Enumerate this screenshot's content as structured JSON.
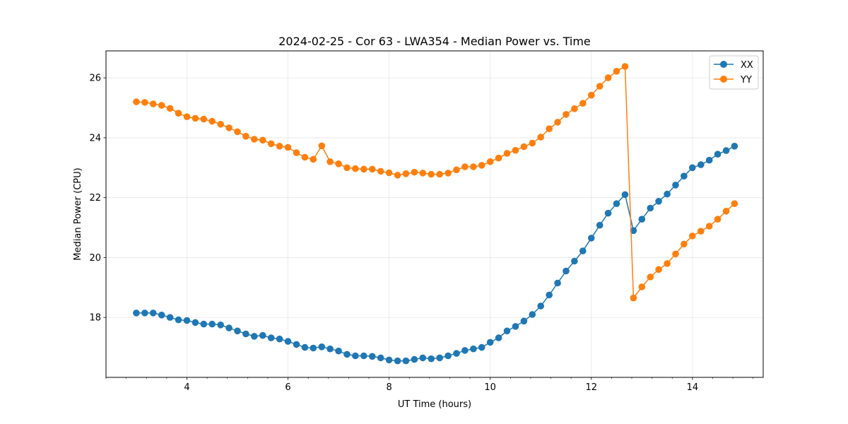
{
  "chart_data": {
    "type": "line",
    "title": "2024-02-25 - Cor 63 - LWA354 - Median Power vs. Time",
    "xlabel": "UT Time (hours)",
    "ylabel": "Median Power (CPU)",
    "xlim": [
      2.4,
      15.4
    ],
    "ylim": [
      16.0,
      26.9
    ],
    "xticks": [
      4,
      6,
      8,
      10,
      12,
      14
    ],
    "yticks": [
      18,
      20,
      22,
      24,
      26
    ],
    "grid": true,
    "legend_position": "top-right",
    "x": [
      3.0,
      3.167,
      3.333,
      3.5,
      3.667,
      3.833,
      4.0,
      4.167,
      4.333,
      4.5,
      4.667,
      4.833,
      5.0,
      5.167,
      5.333,
      5.5,
      5.667,
      5.833,
      6.0,
      6.167,
      6.333,
      6.5,
      6.667,
      6.833,
      7.0,
      7.167,
      7.333,
      7.5,
      7.667,
      7.833,
      8.0,
      8.167,
      8.333,
      8.5,
      8.667,
      8.833,
      9.0,
      9.167,
      9.333,
      9.5,
      9.667,
      9.833,
      10.0,
      10.167,
      10.333,
      10.5,
      10.667,
      10.833,
      11.0,
      11.167,
      11.333,
      11.5,
      11.667,
      11.833,
      12.0,
      12.167,
      12.333,
      12.5,
      12.667,
      12.833,
      13.0,
      13.167,
      13.333,
      13.5,
      13.667,
      13.833,
      14.0,
      14.167,
      14.333,
      14.5,
      14.667,
      14.833
    ],
    "series": [
      {
        "name": "XX",
        "color": "#1f77b4",
        "values": [
          18.15,
          18.15,
          18.15,
          18.08,
          18.0,
          17.92,
          17.9,
          17.83,
          17.78,
          17.78,
          17.75,
          17.65,
          17.55,
          17.45,
          17.37,
          17.4,
          17.32,
          17.28,
          17.2,
          17.1,
          17.0,
          16.98,
          17.02,
          16.95,
          16.88,
          16.77,
          16.72,
          16.72,
          16.7,
          16.65,
          16.58,
          16.55,
          16.55,
          16.6,
          16.65,
          16.62,
          16.65,
          16.72,
          16.8,
          16.9,
          16.95,
          17.0,
          17.17,
          17.32,
          17.55,
          17.7,
          17.88,
          18.1,
          18.38,
          18.75,
          19.15,
          19.55,
          19.88,
          20.22,
          20.65,
          21.08,
          21.48,
          21.8,
          22.1,
          20.9,
          21.28,
          21.65,
          21.88,
          22.12,
          22.42,
          22.72,
          23.0,
          23.1,
          23.25,
          23.45,
          23.57,
          23.72
        ]
      },
      {
        "name": "YY",
        "color": "#ff7f0e",
        "values": [
          25.2,
          25.18,
          25.13,
          25.08,
          24.98,
          24.82,
          24.7,
          24.65,
          24.62,
          24.55,
          24.45,
          24.33,
          24.2,
          24.05,
          23.95,
          23.92,
          23.8,
          23.72,
          23.68,
          23.5,
          23.35,
          23.28,
          23.73,
          23.2,
          23.13,
          23.0,
          22.97,
          22.95,
          22.95,
          22.88,
          22.83,
          22.75,
          22.8,
          22.85,
          22.82,
          22.78,
          22.78,
          22.82,
          22.93,
          23.03,
          23.03,
          23.08,
          23.2,
          23.32,
          23.48,
          23.58,
          23.7,
          23.82,
          24.02,
          24.3,
          24.52,
          24.78,
          24.97,
          25.15,
          25.42,
          25.72,
          26.0,
          26.22,
          26.38,
          18.65,
          19.02,
          19.35,
          19.6,
          19.8,
          20.12,
          20.45,
          20.72,
          20.88,
          21.05,
          21.28,
          21.55,
          21.8
        ]
      }
    ]
  }
}
